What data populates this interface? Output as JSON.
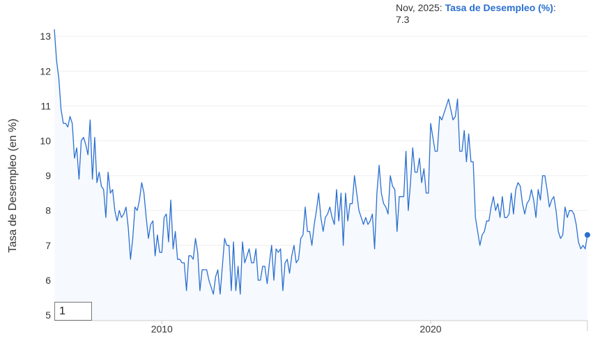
{
  "tooltip": {
    "date": "Nov, 2025",
    "separator": ":",
    "series_name": "Tasa de Desempleo (%)",
    "value_separator": ": ",
    "value": "7.3"
  },
  "zoom_input": {
    "value": "1"
  },
  "colors": {
    "line": "#2a6fd0",
    "area": "#f6f9fd",
    "grid": "#eeeeee",
    "marker": "#2a6fd0"
  },
  "chart_data": {
    "type": "area",
    "ylabel": "Tasa de Desempleo (en %)",
    "xlabel": "",
    "ylim": [
      5,
      14
    ],
    "yticks": [
      5,
      6,
      7,
      8,
      9,
      10,
      11,
      12,
      13
    ],
    "xlim": [
      "2006-01",
      "2025-11"
    ],
    "xticks": [
      {
        "label": "2010",
        "date": "2010-01"
      },
      {
        "label": "2020",
        "date": "2020-01"
      }
    ],
    "grid": true,
    "series": [
      {
        "values": [
          [
            "2006-01",
            13.2
          ],
          [
            "2006-02",
            12.3
          ],
          [
            "2006-03",
            11.8
          ],
          [
            "2006-04",
            10.9
          ],
          [
            "2006-05",
            10.5
          ],
          [
            "2006-06",
            10.5
          ],
          [
            "2006-07",
            10.4
          ],
          [
            "2006-08",
            10.7
          ],
          [
            "2006-09",
            10.5
          ],
          [
            "2006-10",
            9.5
          ],
          [
            "2006-11",
            9.8
          ],
          [
            "2006-12",
            8.9
          ],
          [
            "2007-01",
            10.0
          ],
          [
            "2007-02",
            10.1
          ],
          [
            "2007-03",
            9.9
          ],
          [
            "2007-04",
            9.6
          ],
          [
            "2007-05",
            10.6
          ],
          [
            "2007-06",
            8.9
          ],
          [
            "2007-07",
            10.1
          ],
          [
            "2007-08",
            8.8
          ],
          [
            "2007-09",
            9.1
          ],
          [
            "2007-10",
            8.7
          ],
          [
            "2007-11",
            8.6
          ],
          [
            "2007-12",
            7.8
          ],
          [
            "2008-01",
            9.1
          ],
          [
            "2008-02",
            8.5
          ],
          [
            "2008-03",
            8.6
          ],
          [
            "2008-04",
            8.0
          ],
          [
            "2008-05",
            7.7
          ],
          [
            "2008-06",
            8.0
          ],
          [
            "2008-07",
            7.8
          ],
          [
            "2008-08",
            7.9
          ],
          [
            "2008-09",
            8.1
          ],
          [
            "2008-10",
            7.5
          ],
          [
            "2008-11",
            6.6
          ],
          [
            "2008-12",
            7.2
          ],
          [
            "2009-01",
            8.1
          ],
          [
            "2009-02",
            8.0
          ],
          [
            "2009-03",
            8.3
          ],
          [
            "2009-04",
            8.8
          ],
          [
            "2009-05",
            8.5
          ],
          [
            "2009-06",
            7.8
          ],
          [
            "2009-07",
            7.2
          ],
          [
            "2009-08",
            7.6
          ],
          [
            "2009-09",
            7.7
          ],
          [
            "2009-10",
            6.7
          ],
          [
            "2009-11",
            7.3
          ],
          [
            "2009-12",
            6.8
          ],
          [
            "2010-01",
            6.8
          ],
          [
            "2010-02",
            7.8
          ],
          [
            "2010-03",
            7.9
          ],
          [
            "2010-04",
            7.1
          ],
          [
            "2010-05",
            8.3
          ],
          [
            "2010-06",
            6.9
          ],
          [
            "2010-07",
            7.4
          ],
          [
            "2010-08",
            6.6
          ],
          [
            "2010-09",
            6.6
          ],
          [
            "2010-10",
            6.5
          ],
          [
            "2010-11",
            6.5
          ],
          [
            "2010-12",
            5.7
          ],
          [
            "2011-01",
            6.7
          ],
          [
            "2011-02",
            6.7
          ],
          [
            "2011-03",
            6.6
          ],
          [
            "2011-04",
            7.2
          ],
          [
            "2011-05",
            6.8
          ],
          [
            "2011-06",
            5.7
          ],
          [
            "2011-07",
            6.3
          ],
          [
            "2011-08",
            6.3
          ],
          [
            "2011-09",
            6.3
          ],
          [
            "2011-10",
            6.0
          ],
          [
            "2011-11",
            5.8
          ],
          [
            "2011-12",
            5.6
          ],
          [
            "2012-01",
            6.1
          ],
          [
            "2012-02",
            6.3
          ],
          [
            "2012-03",
            5.6
          ],
          [
            "2012-04",
            6.4
          ],
          [
            "2012-05",
            7.2
          ],
          [
            "2012-06",
            7.0
          ],
          [
            "2012-07",
            7.0
          ],
          [
            "2012-08",
            5.7
          ],
          [
            "2012-09",
            7.1
          ],
          [
            "2012-10",
            5.7
          ],
          [
            "2012-11",
            6.4
          ],
          [
            "2012-12",
            5.6
          ],
          [
            "2013-01",
            7.1
          ],
          [
            "2013-02",
            6.5
          ],
          [
            "2013-03",
            6.7
          ],
          [
            "2013-04",
            6.9
          ],
          [
            "2013-05",
            6.5
          ],
          [
            "2013-06",
            6.5
          ],
          [
            "2013-07",
            6.9
          ],
          [
            "2013-08",
            6.0
          ],
          [
            "2013-09",
            6.0
          ],
          [
            "2013-10",
            6.4
          ],
          [
            "2013-11",
            6.4
          ],
          [
            "2013-12",
            5.9
          ],
          [
            "2014-01",
            6.5
          ],
          [
            "2014-02",
            7.0
          ],
          [
            "2014-03",
            6.0
          ],
          [
            "2014-04",
            6.9
          ],
          [
            "2014-05",
            6.8
          ],
          [
            "2014-06",
            6.9
          ],
          [
            "2014-07",
            5.7
          ],
          [
            "2014-08",
            6.5
          ],
          [
            "2014-09",
            6.6
          ],
          [
            "2014-10",
            6.2
          ],
          [
            "2014-11",
            6.7
          ],
          [
            "2014-12",
            7.0
          ],
          [
            "2015-01",
            6.5
          ],
          [
            "2015-02",
            6.6
          ],
          [
            "2015-03",
            7.2
          ],
          [
            "2015-04",
            7.3
          ],
          [
            "2015-05",
            8.1
          ],
          [
            "2015-06",
            7.4
          ],
          [
            "2015-07",
            7.4
          ],
          [
            "2015-08",
            7.0
          ],
          [
            "2015-09",
            7.6
          ],
          [
            "2015-10",
            8.0
          ],
          [
            "2015-11",
            8.5
          ],
          [
            "2015-12",
            7.8
          ],
          [
            "2016-01",
            7.4
          ],
          [
            "2016-02",
            7.8
          ],
          [
            "2016-03",
            7.9
          ],
          [
            "2016-04",
            8.1
          ],
          [
            "2016-05",
            7.8
          ],
          [
            "2016-06",
            7.6
          ],
          [
            "2016-07",
            8.6
          ],
          [
            "2016-08",
            7.7
          ],
          [
            "2016-09",
            8.5
          ],
          [
            "2016-10",
            7.0
          ],
          [
            "2016-11",
            8.5
          ],
          [
            "2016-12",
            7.7
          ],
          [
            "2017-01",
            8.2
          ],
          [
            "2017-02",
            8.2
          ],
          [
            "2017-03",
            9.0
          ],
          [
            "2017-04",
            8.5
          ],
          [
            "2017-05",
            8.0
          ],
          [
            "2017-06",
            7.8
          ],
          [
            "2017-07",
            7.6
          ],
          [
            "2017-08",
            7.8
          ],
          [
            "2017-09",
            7.6
          ],
          [
            "2017-10",
            7.7
          ],
          [
            "2017-11",
            7.9
          ],
          [
            "2017-12",
            6.9
          ],
          [
            "2018-01",
            8.5
          ],
          [
            "2018-02",
            9.3
          ],
          [
            "2018-03",
            8.5
          ],
          [
            "2018-04",
            8.2
          ],
          [
            "2018-05",
            8.1
          ],
          [
            "2018-06",
            7.9
          ],
          [
            "2018-07",
            9.0
          ],
          [
            "2018-08",
            8.7
          ],
          [
            "2018-09",
            8.6
          ],
          [
            "2018-10",
            7.4
          ],
          [
            "2018-11",
            8.4
          ],
          [
            "2018-12",
            8.4
          ],
          [
            "2019-01",
            8.4
          ],
          [
            "2019-02",
            9.7
          ],
          [
            "2019-03",
            8.0
          ],
          [
            "2019-04",
            8.8
          ],
          [
            "2019-05",
            9.8
          ],
          [
            "2019-06",
            9.1
          ],
          [
            "2019-07",
            9.1
          ],
          [
            "2019-08",
            9.5
          ],
          [
            "2019-09",
            8.8
          ],
          [
            "2019-10",
            9.2
          ],
          [
            "2019-11",
            8.5
          ],
          [
            "2019-12",
            8.5
          ],
          [
            "2020-01",
            10.5
          ],
          [
            "2020-02",
            10.1
          ],
          [
            "2020-03",
            9.7
          ],
          [
            "2020-04",
            9.7
          ],
          [
            "2020-05",
            10.7
          ],
          [
            "2020-06",
            10.6
          ],
          [
            "2020-07",
            10.8
          ],
          [
            "2020-08",
            11.0
          ],
          [
            "2020-09",
            11.2
          ],
          [
            "2020-10",
            10.9
          ],
          [
            "2020-11",
            10.6
          ],
          [
            "2020-12",
            10.7
          ],
          [
            "2021-01",
            11.2
          ],
          [
            "2021-02",
            9.7
          ],
          [
            "2021-03",
            9.7
          ],
          [
            "2021-04",
            10.3
          ],
          [
            "2021-05",
            9.4
          ],
          [
            "2021-06",
            10.2
          ],
          [
            "2021-07",
            9.4
          ],
          [
            "2021-08",
            9.4
          ],
          [
            "2021-09",
            7.8
          ],
          [
            "2021-10",
            7.4
          ],
          [
            "2021-11",
            7.0
          ],
          [
            "2021-12",
            7.3
          ],
          [
            "2022-01",
            7.4
          ],
          [
            "2022-02",
            7.7
          ],
          [
            "2022-03",
            7.7
          ],
          [
            "2022-04",
            8.1
          ],
          [
            "2022-05",
            8.4
          ],
          [
            "2022-06",
            8.0
          ],
          [
            "2022-07",
            8.2
          ],
          [
            "2022-08",
            7.8
          ],
          [
            "2022-09",
            8.4
          ],
          [
            "2022-10",
            7.8
          ],
          [
            "2022-11",
            7.8
          ],
          [
            "2022-12",
            7.9
          ],
          [
            "2023-01",
            8.5
          ],
          [
            "2023-02",
            7.9
          ],
          [
            "2023-03",
            8.6
          ],
          [
            "2023-04",
            8.8
          ],
          [
            "2023-05",
            8.7
          ],
          [
            "2023-06",
            8.2
          ],
          [
            "2023-07",
            7.9
          ],
          [
            "2023-08",
            8.2
          ],
          [
            "2023-09",
            8.3
          ],
          [
            "2023-10",
            8.6
          ],
          [
            "2023-11",
            8.3
          ],
          [
            "2023-12",
            7.8
          ],
          [
            "2024-01",
            8.6
          ],
          [
            "2024-02",
            8.3
          ],
          [
            "2024-03",
            9.0
          ],
          [
            "2024-04",
            9.0
          ],
          [
            "2024-05",
            8.6
          ],
          [
            "2024-06",
            8.1
          ],
          [
            "2024-07",
            8.3
          ],
          [
            "2024-08",
            8.4
          ],
          [
            "2024-09",
            8.0
          ],
          [
            "2024-10",
            7.4
          ],
          [
            "2024-11",
            7.2
          ],
          [
            "2024-12",
            7.3
          ],
          [
            "2025-01",
            8.1
          ],
          [
            "2025-02",
            7.8
          ],
          [
            "2025-03",
            8.0
          ],
          [
            "2025-04",
            8.0
          ],
          [
            "2025-05",
            7.9
          ],
          [
            "2025-06",
            7.6
          ],
          [
            "2025-07",
            7.1
          ],
          [
            "2025-08",
            6.9
          ],
          [
            "2025-09",
            7.0
          ],
          [
            "2025-10",
            6.9
          ],
          [
            "2025-11",
            7.3
          ]
        ]
      }
    ],
    "highlight_point": [
      "2025-11",
      7.3
    ]
  }
}
